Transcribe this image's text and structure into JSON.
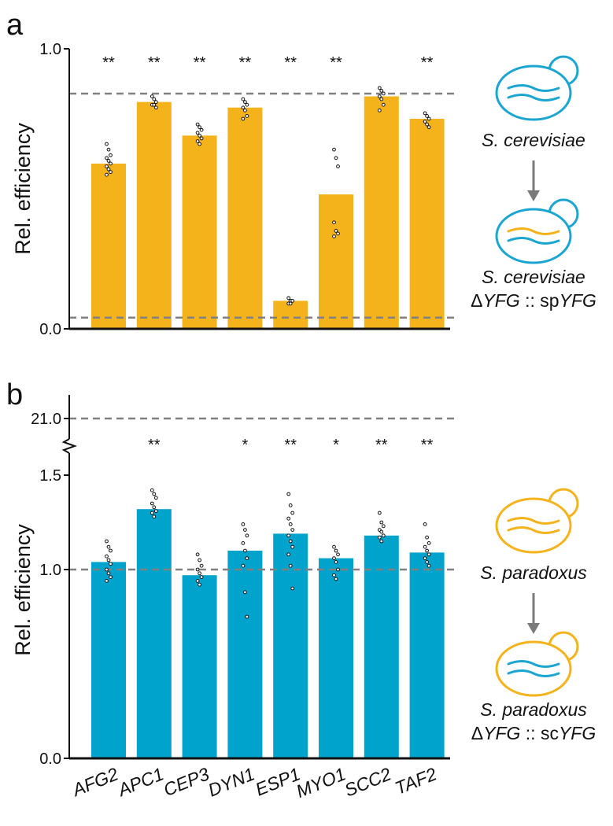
{
  "chart_data": [
    {
      "type": "bar",
      "label": "a",
      "ylabel": "Rel. efficiency",
      "color": "#F5B31B",
      "values": [
        0.59,
        0.81,
        0.69,
        0.79,
        0.1,
        0.48,
        0.83,
        0.75
      ],
      "points": [
        [
          0.66,
          0.64,
          0.62,
          0.61,
          0.6,
          0.59,
          0.58,
          0.57,
          0.56,
          0.55
        ],
        [
          0.83,
          0.82,
          0.81,
          0.8,
          0.8,
          0.79
        ],
        [
          0.73,
          0.72,
          0.71,
          0.7,
          0.69,
          0.68,
          0.67,
          0.66
        ],
        [
          0.82,
          0.81,
          0.8,
          0.79,
          0.78,
          0.76,
          0.75
        ],
        [
          0.11,
          0.1,
          0.1,
          0.09,
          0.09
        ],
        [
          0.64,
          0.61,
          0.58,
          0.38,
          0.35,
          0.34,
          0.33
        ],
        [
          0.86,
          0.85,
          0.84,
          0.83,
          0.82,
          0.8,
          0.78
        ],
        [
          0.77,
          0.76,
          0.75,
          0.74,
          0.73,
          0.72
        ]
      ],
      "significance": [
        "**",
        "**",
        "**",
        "**",
        "**",
        "**",
        null,
        "**"
      ],
      "ylim": [
        0,
        1
      ],
      "yticks": [
        {
          "value": 0,
          "label": "0.0"
        },
        {
          "value": 1,
          "label": "1.0"
        }
      ],
      "reference_lines": [
        0.84,
        0.04
      ],
      "diagram": {
        "source": "S. cerevisiae",
        "target": "S. cerevisiae",
        "construct": [
          {
            "text": "Δ",
            "italic": false
          },
          {
            "text": "YFG",
            "italic": true
          },
          {
            "text": " :: sp",
            "italic": false
          },
          {
            "text": "YFG",
            "italic": true
          }
        ],
        "cells": [
          {
            "outline": "#1BA6D1",
            "lines": [
              "#1BA6D1",
              "#1BA6D1"
            ]
          },
          {
            "outline": "#1BA6D1",
            "lines": [
              "#F5B31B",
              "#1BA6D1"
            ]
          }
        ]
      }
    },
    {
      "type": "bar",
      "label": "b",
      "ylabel": "Rel. efficiency",
      "color": "#00A3CC",
      "categories": [
        "AFG2",
        "APC1",
        "CEP3",
        "DYN1",
        "ESP1",
        "MYO1",
        "SCC2",
        "TAF2"
      ],
      "values": [
        1.04,
        1.32,
        0.97,
        1.1,
        1.19,
        1.06,
        1.18,
        1.09
      ],
      "points": [
        [
          1.15,
          1.12,
          1.1,
          1.07,
          1.05,
          1.03,
          1.0,
          0.98,
          0.96,
          0.94
        ],
        [
          1.42,
          1.4,
          1.38,
          1.35,
          1.33,
          1.31,
          1.3,
          1.28
        ],
        [
          1.08,
          1.05,
          1.02,
          1.0,
          0.98,
          0.96,
          0.94,
          0.92
        ],
        [
          1.24,
          1.21,
          1.18,
          1.14,
          1.1,
          1.06,
          1.02,
          0.88,
          0.75
        ],
        [
          1.4,
          1.34,
          1.3,
          1.27,
          1.24,
          1.21,
          1.18,
          1.15,
          1.12,
          1.08,
          1.02,
          0.9
        ],
        [
          1.12,
          1.1,
          1.08,
          1.06,
          1.04,
          1.0,
          0.97,
          0.95
        ],
        [
          1.3,
          1.25,
          1.23,
          1.21,
          1.2,
          1.18,
          1.17,
          1.15
        ],
        [
          1.24,
          1.17,
          1.14,
          1.12,
          1.1,
          1.08,
          1.06,
          1.04,
          1.02
        ]
      ],
      "significance": [
        null,
        "**",
        null,
        "*",
        "**",
        "*",
        "**",
        "**"
      ],
      "ylim": [
        0,
        21.1
      ],
      "axis_break": [
        1.6,
        20.9
      ],
      "yticks": [
        {
          "value": 0,
          "label": "0.0"
        },
        {
          "value": 1,
          "label": "1.0"
        },
        {
          "value": 1.5,
          "label": "1.5"
        },
        {
          "value": 21,
          "label": "21.0"
        }
      ],
      "reference_lines": [
        21,
        1
      ],
      "diagram": {
        "source": "S. paradoxus",
        "target": "S. paradoxus",
        "construct": [
          {
            "text": "Δ",
            "italic": false
          },
          {
            "text": "YFG",
            "italic": true
          },
          {
            "text": " :: sc",
            "italic": false
          },
          {
            "text": "YFG",
            "italic": true
          }
        ],
        "cells": [
          {
            "outline": "#F5B31B",
            "lines": [
              "#F5B31B",
              "#F5B31B"
            ]
          },
          {
            "outline": "#F5B31B",
            "lines": [
              "#1BA6D1",
              "#1BA6D1"
            ]
          }
        ]
      }
    }
  ]
}
